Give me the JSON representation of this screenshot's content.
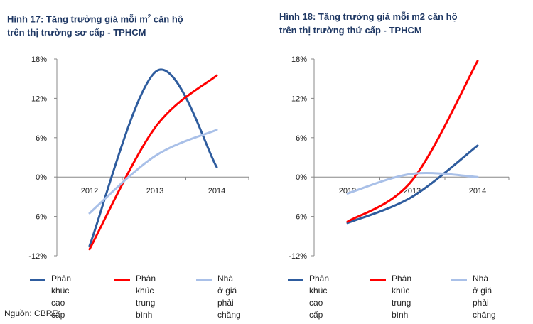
{
  "chart_data": [
    {
      "type": "line",
      "title_main": "Hình 17: Tăng trưởng giá mỗi m",
      "title_sup": "2",
      "title_rest": " căn hộ",
      "title_line2": "trên thị trường sơ cấp - TPHCM",
      "categories": [
        "2012",
        "2013",
        "2014"
      ],
      "y_ticks": [
        "18%",
        "12%",
        "6%",
        "0%",
        "-6%",
        "-12%"
      ],
      "ylim": [
        -12,
        18
      ],
      "series": [
        {
          "name": "Phân khúc cao cấp",
          "label_lines": [
            "Phân khúc",
            "cao cấp"
          ],
          "color": "#2e5c9e",
          "values": [
            -10.5,
            15.8,
            1.5
          ],
          "peak": [
            1.03,
            16.2
          ]
        },
        {
          "name": "Phân khúc trung bình",
          "label_lines": [
            "Phân khúc",
            "trung bình"
          ],
          "color": "#ff0000",
          "values": [
            -11,
            7.5,
            15.5
          ]
        },
        {
          "name": "Nhà ở giá phải chăng",
          "label_lines": [
            "Nhà ở giá",
            "phải chăng"
          ],
          "color": "#a9c0e8",
          "values": [
            -5.5,
            3.2,
            7.2
          ]
        }
      ]
    },
    {
      "type": "line",
      "title_main": "Hình 18: Tăng trưởng giá mỗi m2 căn hộ",
      "title_line2": "trên thị trường thứ cấp - TPHCM",
      "categories": [
        "2012",
        "2013",
        "2014"
      ],
      "y_ticks": [
        "18%",
        "12%",
        "6%",
        "0%",
        "-6%",
        "-12%"
      ],
      "ylim": [
        -12,
        18
      ],
      "series": [
        {
          "name": "Phân khúc cao cấp",
          "label_lines": [
            "Phân khúc",
            "cao cấp"
          ],
          "color": "#2e5c9e",
          "values": [
            -7,
            -3,
            4.8
          ]
        },
        {
          "name": "Phân khúc trung bình",
          "label_lines": [
            "Phân khúc",
            "trung bình"
          ],
          "color": "#ff0000",
          "values": [
            -6.8,
            -0.5,
            17.7
          ]
        },
        {
          "name": "Nhà ở giá phải chăng",
          "label_lines": [
            "Nhà ở giá",
            "phải chăng"
          ],
          "color": "#a9c0e8",
          "values": [
            -2.5,
            0.5,
            0
          ]
        }
      ]
    }
  ],
  "source": "Nguồn: CBRE"
}
